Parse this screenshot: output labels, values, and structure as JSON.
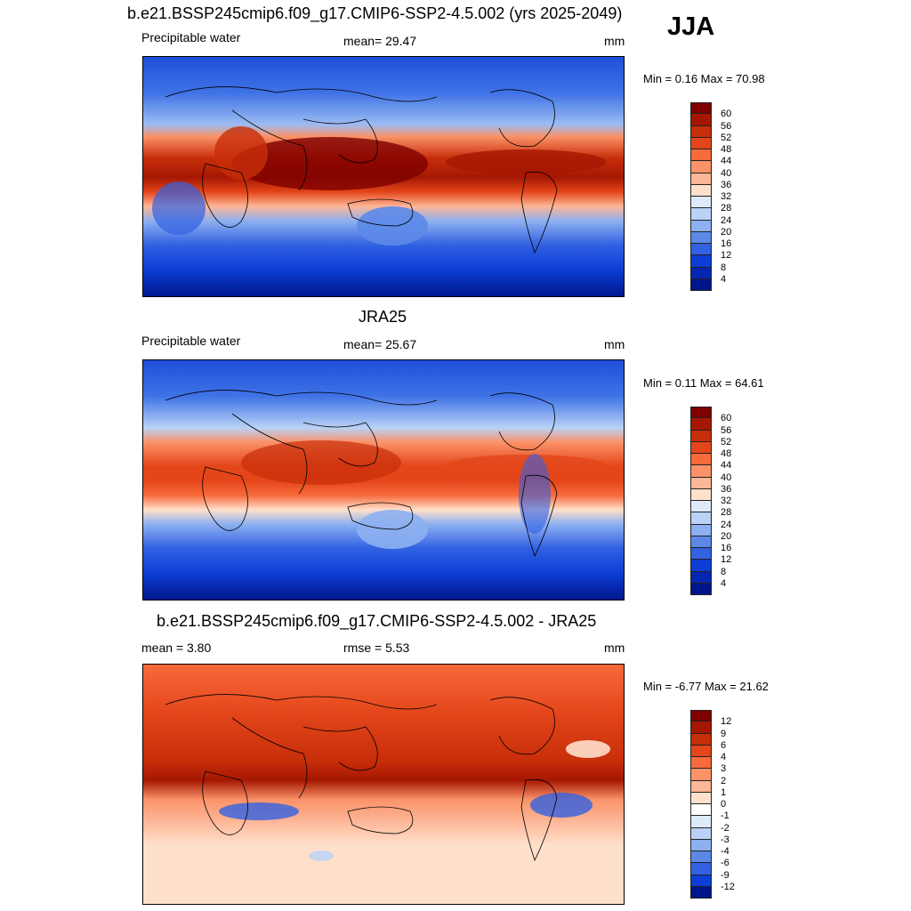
{
  "season": "JJA",
  "panels": [
    {
      "title": "b.e21.BSSP245cmip6.f09_g17.CMIP6-SSP2-4.5.002 (yrs 2025-2049)",
      "left_label": "Precipitable water",
      "center_label": "mean=  29.47",
      "units": "mm",
      "minmax": "Min =   0.16 Max =  70.98",
      "colorbar_ticks": [
        "60",
        "56",
        "52",
        "48",
        "44",
        "40",
        "36",
        "32",
        "28",
        "24",
        "20",
        "16",
        "12",
        "8",
        "4"
      ],
      "colorbar_colors": [
        "#7e0000",
        "#a51702",
        "#c72e0a",
        "#e4461a",
        "#f76a3b",
        "#fb9268",
        "#fdb697",
        "#ffe0cb",
        "#ddeafa",
        "#b9d2f6",
        "#8db0f0",
        "#5c89e8",
        "#3261e2",
        "#0d3ed6",
        "#0426b0",
        "#00158a"
      ]
    },
    {
      "title": "JRA25",
      "left_label": "Precipitable water",
      "center_label": "mean=  25.67",
      "units": "mm",
      "minmax": "Min =   0.11 Max =  64.61",
      "colorbar_ticks": [
        "60",
        "56",
        "52",
        "48",
        "44",
        "40",
        "36",
        "32",
        "28",
        "24",
        "20",
        "16",
        "12",
        "8",
        "4"
      ],
      "colorbar_colors": [
        "#7e0000",
        "#a51702",
        "#c72e0a",
        "#e4461a",
        "#f76a3b",
        "#fb9268",
        "#fdb697",
        "#ffe0cb",
        "#ddeafa",
        "#b9d2f6",
        "#8db0f0",
        "#5c89e8",
        "#3261e2",
        "#0d3ed6",
        "#0426b0",
        "#00158a"
      ]
    },
    {
      "title": "b.e21.BSSP245cmip6.f09_g17.CMIP6-SSP2-4.5.002 - JRA25",
      "left_label": "mean =   3.80",
      "center_label": "rmse =   5.53",
      "units": "mm",
      "minmax": "Min =  -6.77 Max =  21.62",
      "colorbar_ticks": [
        "12",
        "9",
        "6",
        "4",
        "3",
        "2",
        "1",
        "0",
        "-1",
        "-2",
        "-3",
        "-4",
        "-6",
        "-9",
        "-12"
      ],
      "colorbar_colors": [
        "#7e0000",
        "#a51702",
        "#c72e0a",
        "#e4461a",
        "#f76a3b",
        "#fb9268",
        "#fdb697",
        "#ffe0cb",
        "#ffffff",
        "#ddeafa",
        "#b9d2f6",
        "#8db0f0",
        "#5c89e8",
        "#3261e2",
        "#0d3ed6",
        "#00158a"
      ]
    }
  ]
}
